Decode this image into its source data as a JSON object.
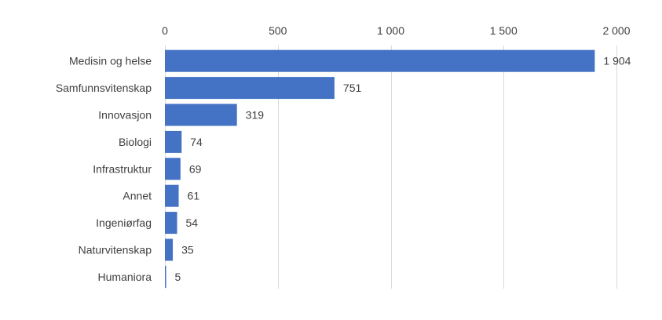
{
  "chart_data": {
    "type": "bar",
    "orientation": "horizontal",
    "categories": [
      "Medisin og helse",
      "Samfunnsvitenskap",
      "Innovasjon",
      "Biologi",
      "Infrastruktur",
      "Annet",
      "Ingeniørfag",
      "Naturvitenskap",
      "Humaniora"
    ],
    "values": [
      1904,
      751,
      319,
      74,
      69,
      61,
      54,
      35,
      5
    ],
    "value_labels": [
      "1 904",
      "751",
      "319",
      "74",
      "69",
      "61",
      "54",
      "35",
      "5"
    ],
    "x_ticks": [
      0,
      500,
      1000,
      1500,
      2000
    ],
    "x_tick_labels": [
      "0",
      "500",
      "1 000",
      "1 500",
      "2 000"
    ],
    "xlim": [
      0,
      2000
    ],
    "x_axis_position": "top",
    "grid": true,
    "legend": "none",
    "bar_color": "#4472c4",
    "grid_color": "#d9d9d9",
    "title": "",
    "xlabel": "",
    "ylabel": ""
  }
}
